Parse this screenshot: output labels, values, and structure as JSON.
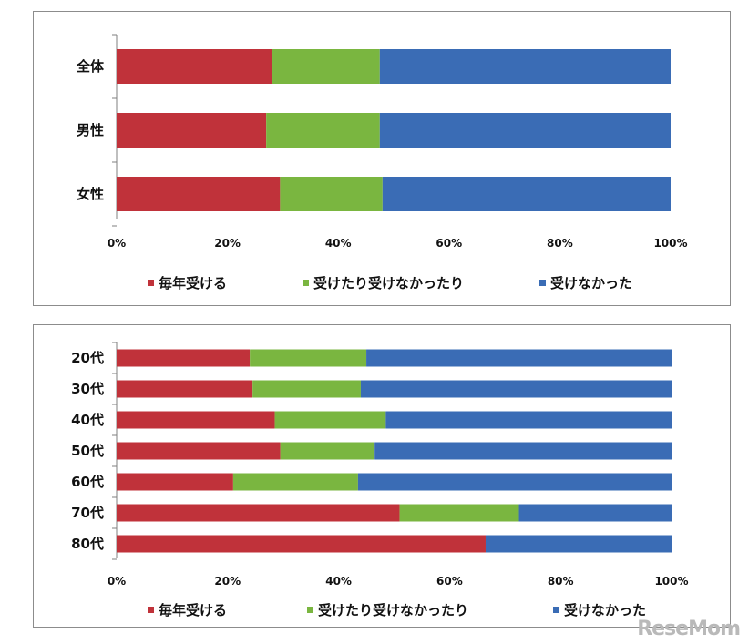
{
  "chart_data": [
    {
      "type": "bar",
      "orientation": "horizontal",
      "stacked": true,
      "percent": true,
      "categories": [
        "全体",
        "男性",
        "女性"
      ],
      "series": [
        {
          "name": "毎年受ける",
          "color": "#c0323a",
          "values": [
            28,
            27,
            29.5
          ]
        },
        {
          "name": "受けたり受けなかったり",
          "color": "#7ab640",
          "values": [
            19.5,
            20.5,
            18.5
          ]
        },
        {
          "name": "受けなかった",
          "color": "#3a6cb5",
          "values": [
            52.5,
            52.5,
            52
          ]
        }
      ],
      "xlim": [
        0,
        100
      ],
      "xticks": [
        "0%",
        "20%",
        "40%",
        "60%",
        "80%",
        "100%"
      ],
      "legend": "bottom"
    },
    {
      "type": "bar",
      "orientation": "horizontal",
      "stacked": true,
      "percent": true,
      "categories": [
        "20代",
        "30代",
        "40代",
        "50代",
        "60代",
        "70代",
        "80代"
      ],
      "series": [
        {
          "name": "毎年受ける",
          "color": "#c0323a",
          "values": [
            24,
            24.5,
            28.5,
            29.5,
            21,
            51,
            66.5
          ]
        },
        {
          "name": "受けたり受けなかったり",
          "color": "#7ab640",
          "values": [
            21,
            19.5,
            20,
            17,
            22.5,
            21.5,
            0
          ]
        },
        {
          "name": "受けなかった",
          "color": "#3a6cb5",
          "values": [
            55,
            56,
            51.5,
            53.5,
            56.5,
            27.5,
            33.5
          ]
        }
      ],
      "xlim": [
        0,
        100
      ],
      "xticks": [
        "0%",
        "20%",
        "40%",
        "60%",
        "80%",
        "100%"
      ],
      "legend": "bottom"
    }
  ],
  "watermark": "ReseMom"
}
